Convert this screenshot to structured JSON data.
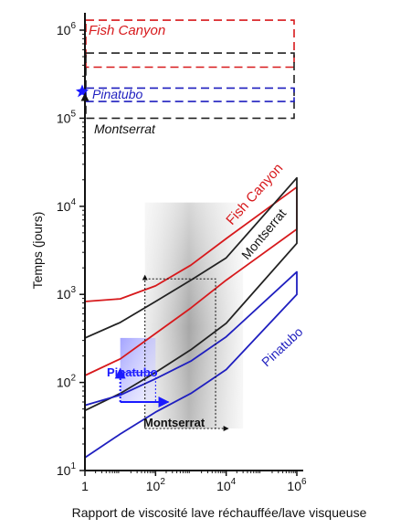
{
  "chart_data": {
    "type": "line",
    "xlabel": "Rapport de viscosité lave réchauffée/lave visqueuse",
    "ylabel": "Temps (jours)",
    "x_scale": "log",
    "y_scale": "log",
    "xlim": [
      1,
      1000000
    ],
    "ylim": [
      10,
      1500000
    ],
    "x_ticks": [
      {
        "value": 1,
        "base": "1",
        "exp": ""
      },
      {
        "value": 100,
        "base": "10",
        "exp": "2"
      },
      {
        "value": 10000,
        "base": "10",
        "exp": "4"
      },
      {
        "value": 1000000,
        "base": "10",
        "exp": "6"
      }
    ],
    "y_ticks": [
      {
        "value": 10,
        "base": "10",
        "exp": "1"
      },
      {
        "value": 100,
        "base": "10",
        "exp": "2"
      },
      {
        "value": 1000,
        "base": "10",
        "exp": "3"
      },
      {
        "value": 10000,
        "base": "10",
        "exp": "4"
      },
      {
        "value": 100000,
        "base": "10",
        "exp": "5"
      },
      {
        "value": 1000000,
        "base": "10",
        "exp": "6"
      }
    ],
    "series": [
      {
        "color": "#d7191c",
        "x": [
          1,
          10,
          100,
          1000,
          10000,
          1000000,
          1000000,
          10000,
          1000,
          100,
          10,
          1
        ],
        "y": [
          830,
          890,
          1250,
          2150,
          4300,
          16500,
          5500,
          1450,
          700,
          360,
          185,
          120
        ]
      },
      {
        "color": "#222222",
        "x": [
          1,
          10,
          100,
          1000,
          10000,
          1000000,
          1000000,
          10000,
          1000,
          100,
          10,
          1
        ],
        "y": [
          320,
          480,
          830,
          1450,
          2600,
          21000,
          3800,
          470,
          235,
          130,
          75,
          48
        ]
      },
      {
        "color": "#1f1fbf",
        "x": [
          1,
          10,
          100,
          1000,
          10000,
          1000000,
          1000000,
          10000,
          1000,
          100,
          10,
          1
        ],
        "y": [
          55,
          72,
          110,
          175,
          330,
          1800,
          1000,
          140,
          75,
          46,
          26,
          14
        ]
      }
    ],
    "bands": [
      {
        "color": "#d7191c",
        "y_top": 1300000,
        "y_bottom": 380000
      },
      {
        "color": "#222222",
        "y_top": 550000,
        "y_bottom": 100000
      },
      {
        "color": "#1f1fbf",
        "y_top": 220000,
        "y_bottom": 155000
      }
    ],
    "regions": [
      {
        "shade": "grey",
        "x": [
          50,
          30000
        ],
        "y": [
          30,
          11000
        ]
      },
      {
        "shade": "blue",
        "x": [
          10,
          100
        ],
        "y": [
          60,
          320
        ]
      }
    ],
    "dotted_boxes": [
      {
        "x": [
          50,
          5000
        ],
        "y": [
          30,
          1500
        ]
      },
      {
        "x": [
          10,
          100
        ],
        "y": [
          60,
          130
        ]
      }
    ],
    "annotations": {
      "fish_band": "Fish Canyon",
      "pinatubo_band": "Pinatubo",
      "montserrat_band": "Montserrat",
      "fish_curve": "Fish Canyon",
      "montserrat_curve": "Montserrat",
      "pinatubo_curve": "Pinatubo",
      "pinatubo_box": "Pinatubo",
      "montserrat_box": "Montserrat"
    }
  }
}
